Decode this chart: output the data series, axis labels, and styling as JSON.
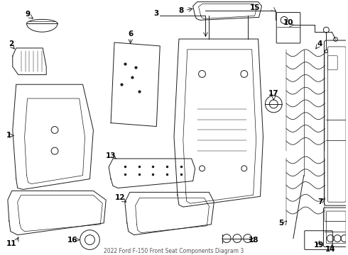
{
  "title": "2022 Ford F-150 Front Seat Components Diagram 3",
  "bg_color": "#ffffff",
  "line_color": "#1a1a1a",
  "text_color": "#000000",
  "lw": 0.7
}
